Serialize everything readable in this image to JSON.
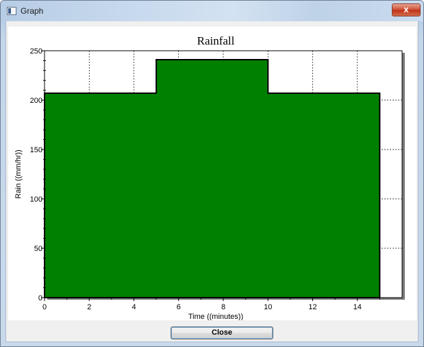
{
  "window": {
    "title": "Graph",
    "close_glyph": "x"
  },
  "icons": {
    "app": "app-window-icon",
    "close": "close-icon"
  },
  "colors": {
    "series_fill": "#008000",
    "series_outline": "#000000"
  },
  "buttons": {
    "close_label": "Close"
  },
  "chart_data": {
    "type": "area",
    "title": "Rainfall",
    "xlabel": "Time  ((minutes))",
    "ylabel": "Rain ((mm/hr))",
    "xlim": [
      0,
      16
    ],
    "ylim": [
      0,
      250
    ],
    "xticks": [
      0,
      2,
      4,
      6,
      8,
      10,
      12,
      14
    ],
    "yticks": [
      0,
      50,
      100,
      150,
      200,
      250
    ],
    "grid": true,
    "series": [
      {
        "step": true,
        "x": [
          0,
          5,
          10,
          15
        ],
        "y": [
          207,
          241,
          207,
          207
        ]
      }
    ]
  }
}
